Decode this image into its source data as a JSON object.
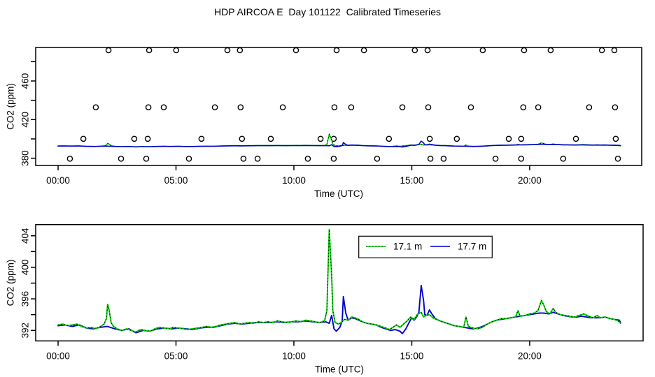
{
  "figure_title": "HDP AIRCOA E  Day 101122  Calibrated Timeseries",
  "colors": {
    "series_green": "#00D400",
    "series_blue": "#0000CD",
    "axis_black": "#000000",
    "background": "#ffffff"
  },
  "chart_data": [
    {
      "type": "line",
      "panel": "top",
      "title": "",
      "xlabel": "Time (UTC)",
      "ylabel": "CO2 (ppm)",
      "xlim_hours": [
        -0.95,
        24.75
      ],
      "ylim_ppm": [
        372.5,
        494.7
      ],
      "grid": false,
      "xticks": [
        {
          "t": 0,
          "label": "00:00"
        },
        {
          "t": 5,
          "label": "05:00"
        },
        {
          "t": 10,
          "label": "10:00"
        },
        {
          "t": 15,
          "label": "15:00"
        },
        {
          "t": 20,
          "label": "20:00"
        }
      ],
      "yticks": [
        {
          "v": 380,
          "label": "380"
        },
        {
          "v": 400,
          "label": ""
        },
        {
          "v": 420,
          "label": "420"
        },
        {
          "v": 440,
          "label": ""
        },
        {
          "v": 460,
          "label": "460"
        },
        {
          "v": 480,
          "label": ""
        }
      ],
      "series_draw_order": [
        "17.1 m",
        "17.7 m"
      ],
      "calibration_circles": {
        "marker": "open-circle",
        "levels_ppm": [
          491.8,
          432.7,
          400.1,
          379.5
        ],
        "times_hours": [
          [
            2.14,
            3.86,
            5.01,
            7.18,
            7.71,
            10.09,
            11.81,
            12.97,
            15.13,
            15.67,
            18.01,
            19.76,
            20.89,
            23.06,
            23.59
          ],
          [
            1.6,
            3.83,
            4.48,
            6.65,
            7.74,
            9.53,
            11.72,
            12.43,
            14.6,
            15.7,
            17.51,
            19.73,
            20.36,
            22.52,
            23.62
          ],
          [
            1.07,
            3.23,
            3.8,
            6.08,
            7.8,
            9.02,
            11.13,
            11.69,
            14.03,
            15.76,
            16.91,
            19.11,
            19.64,
            21.96,
            23.65
          ],
          [
            0.5,
            2.67,
            3.74,
            5.55,
            7.86,
            8.46,
            10.59,
            11.69,
            13.53,
            15.79,
            16.35,
            18.55,
            19.64,
            21.42,
            23.74
          ]
        ]
      }
    },
    {
      "type": "line",
      "panel": "bottom",
      "title": "",
      "xlabel": "Time (UTC)",
      "ylabel": "CO2 (ppm)",
      "xlim_hours": [
        -0.95,
        24.81
      ],
      "ylim_ppm": [
        390.67,
        405.42
      ],
      "grid": false,
      "xticks": [
        {
          "t": 0,
          "label": "00:00"
        },
        {
          "t": 5,
          "label": "05:00"
        },
        {
          "t": 10,
          "label": "10:00"
        },
        {
          "t": 15,
          "label": "15:00"
        },
        {
          "t": 20,
          "label": "20:00"
        }
      ],
      "yticks": [
        {
          "v": 392,
          "label": "392"
        },
        {
          "v": 394,
          "label": ""
        },
        {
          "v": 396,
          "label": "396"
        },
        {
          "v": 398,
          "label": ""
        },
        {
          "v": 400,
          "label": "400"
        },
        {
          "v": 402,
          "label": ""
        },
        {
          "v": 404,
          "label": "404"
        }
      ],
      "series_draw_order": [
        "17.7 m",
        "17.1 m"
      ],
      "legend": {
        "position": "top-center",
        "items": [
          {
            "label": "17.1 m",
            "style": "dotted",
            "color": "#00D400"
          },
          {
            "label": "17.7 m",
            "style": "solid",
            "color": "#0000CD"
          }
        ]
      }
    }
  ],
  "series": [
    {
      "name": "17.1 m",
      "color": "#00D400",
      "line_style": "green-with-black-dots",
      "points_t_ppm": [
        [
          0.0,
          392.7
        ],
        [
          0.2,
          392.8
        ],
        [
          0.4,
          392.6
        ],
        [
          0.6,
          392.7
        ],
        [
          0.8,
          392.8
        ],
        [
          1.0,
          392.5
        ],
        [
          1.2,
          392.3
        ],
        [
          1.4,
          392.4
        ],
        [
          1.6,
          392.2
        ],
        [
          1.8,
          392.5
        ],
        [
          1.95,
          392.8
        ],
        [
          2.05,
          393.5
        ],
        [
          2.1,
          395.3
        ],
        [
          2.15,
          394.8
        ],
        [
          2.25,
          393.0
        ],
        [
          2.35,
          392.5
        ],
        [
          2.5,
          392.2
        ],
        [
          2.7,
          392.0
        ],
        [
          2.9,
          392.2
        ],
        [
          3.1,
          392.0
        ],
        [
          3.3,
          391.8
        ],
        [
          3.5,
          392.1
        ],
        [
          3.7,
          392.0
        ],
        [
          3.9,
          391.9
        ],
        [
          4.1,
          392.2
        ],
        [
          4.3,
          392.4
        ],
        [
          4.5,
          392.3
        ],
        [
          4.7,
          392.2
        ],
        [
          4.9,
          392.4
        ],
        [
          5.1,
          392.3
        ],
        [
          5.3,
          392.2
        ],
        [
          5.5,
          392.1
        ],
        [
          5.7,
          392.2
        ],
        [
          5.9,
          392.3
        ],
        [
          6.1,
          392.4
        ],
        [
          6.3,
          392.5
        ],
        [
          6.5,
          392.4
        ],
        [
          6.7,
          392.5
        ],
        [
          6.9,
          392.7
        ],
        [
          7.1,
          392.8
        ],
        [
          7.3,
          392.9
        ],
        [
          7.5,
          393.0
        ],
        [
          7.7,
          392.8
        ],
        [
          7.9,
          392.9
        ],
        [
          8.1,
          393.0
        ],
        [
          8.3,
          392.9
        ],
        [
          8.5,
          393.1
        ],
        [
          8.7,
          393.0
        ],
        [
          8.9,
          393.1
        ],
        [
          9.1,
          393.0
        ],
        [
          9.3,
          393.2
        ],
        [
          9.5,
          393.1
        ],
        [
          9.7,
          393.0
        ],
        [
          9.9,
          393.1
        ],
        [
          10.1,
          393.2
        ],
        [
          10.3,
          393.1
        ],
        [
          10.5,
          393.3
        ],
        [
          10.7,
          393.2
        ],
        [
          10.9,
          393.1
        ],
        [
          11.1,
          393.0
        ],
        [
          11.3,
          393.2
        ],
        [
          11.4,
          394.5
        ],
        [
          11.5,
          404.8
        ],
        [
          11.6,
          399.0
        ],
        [
          11.65,
          394.5
        ],
        [
          11.75,
          393.0
        ],
        [
          11.9,
          392.8
        ],
        [
          12.0,
          393.0
        ],
        [
          12.15,
          393.4
        ],
        [
          12.3,
          393.3
        ],
        [
          12.45,
          393.7
        ],
        [
          12.6,
          393.6
        ],
        [
          12.75,
          393.4
        ],
        [
          12.9,
          393.1
        ],
        [
          13.1,
          392.9
        ],
        [
          13.3,
          392.8
        ],
        [
          13.5,
          392.7
        ],
        [
          13.7,
          392.5
        ],
        [
          13.9,
          392.3
        ],
        [
          14.05,
          392.1
        ],
        [
          14.2,
          392.4
        ],
        [
          14.35,
          392.7
        ],
        [
          14.5,
          392.4
        ],
        [
          14.65,
          392.8
        ],
        [
          14.8,
          393.2
        ],
        [
          14.95,
          393.7
        ],
        [
          15.1,
          393.4
        ],
        [
          15.25,
          394.1
        ],
        [
          15.4,
          394.3
        ],
        [
          15.5,
          393.7
        ],
        [
          15.6,
          393.9
        ],
        [
          15.75,
          394.0
        ],
        [
          15.9,
          393.6
        ],
        [
          16.05,
          393.4
        ],
        [
          16.2,
          393.2
        ],
        [
          16.4,
          393.0
        ],
        [
          16.6,
          392.8
        ],
        [
          16.8,
          392.6
        ],
        [
          17.0,
          392.5
        ],
        [
          17.2,
          392.4
        ],
        [
          17.3,
          393.7
        ],
        [
          17.4,
          392.5
        ],
        [
          17.6,
          392.3
        ],
        [
          17.8,
          392.2
        ],
        [
          18.0,
          392.4
        ],
        [
          18.2,
          392.8
        ],
        [
          18.4,
          393.1
        ],
        [
          18.6,
          393.3
        ],
        [
          18.8,
          393.5
        ],
        [
          19.0,
          393.5
        ],
        [
          19.2,
          393.6
        ],
        [
          19.4,
          393.7
        ],
        [
          19.5,
          394.5
        ],
        [
          19.6,
          393.8
        ],
        [
          19.8,
          393.9
        ],
        [
          20.0,
          394.1
        ],
        [
          20.2,
          394.2
        ],
        [
          20.35,
          394.5
        ],
        [
          20.5,
          395.8
        ],
        [
          20.6,
          395.2
        ],
        [
          20.7,
          394.4
        ],
        [
          20.85,
          394.1
        ],
        [
          21.0,
          394.8
        ],
        [
          21.1,
          394.3
        ],
        [
          21.3,
          394.0
        ],
        [
          21.5,
          393.9
        ],
        [
          21.7,
          393.8
        ],
        [
          21.9,
          393.7
        ],
        [
          22.1,
          393.9
        ],
        [
          22.3,
          394.1
        ],
        [
          22.5,
          393.8
        ],
        [
          22.7,
          393.6
        ],
        [
          22.85,
          393.9
        ],
        [
          23.0,
          393.6
        ],
        [
          23.2,
          393.7
        ],
        [
          23.4,
          393.5
        ],
        [
          23.6,
          393.4
        ],
        [
          23.75,
          393.2
        ],
        [
          23.85,
          392.9
        ]
      ]
    },
    {
      "name": "17.7 m",
      "color": "#0000CD",
      "line_style": "solid",
      "points_t_ppm": [
        [
          0.0,
          392.6
        ],
        [
          0.3,
          392.7
        ],
        [
          0.6,
          392.5
        ],
        [
          0.9,
          392.7
        ],
        [
          1.2,
          392.3
        ],
        [
          1.5,
          392.2
        ],
        [
          1.8,
          392.4
        ],
        [
          2.1,
          392.5
        ],
        [
          2.4,
          392.2
        ],
        [
          2.7,
          392.0
        ],
        [
          3.0,
          392.2
        ],
        [
          3.3,
          391.7
        ],
        [
          3.6,
          392.0
        ],
        [
          3.9,
          391.9
        ],
        [
          4.2,
          392.2
        ],
        [
          4.5,
          392.3
        ],
        [
          4.8,
          392.2
        ],
        [
          5.1,
          392.3
        ],
        [
          5.4,
          392.2
        ],
        [
          5.7,
          392.1
        ],
        [
          6.0,
          392.3
        ],
        [
          6.3,
          392.4
        ],
        [
          6.6,
          392.4
        ],
        [
          6.9,
          392.6
        ],
        [
          7.2,
          392.8
        ],
        [
          7.5,
          392.9
        ],
        [
          7.8,
          392.8
        ],
        [
          8.1,
          392.9
        ],
        [
          8.4,
          393.0
        ],
        [
          8.7,
          393.0
        ],
        [
          9.0,
          393.0
        ],
        [
          9.3,
          393.1
        ],
        [
          9.6,
          393.0
        ],
        [
          9.9,
          393.1
        ],
        [
          10.2,
          393.1
        ],
        [
          10.5,
          393.2
        ],
        [
          10.8,
          393.1
        ],
        [
          11.1,
          393.0
        ],
        [
          11.35,
          393.1
        ],
        [
          11.5,
          392.9
        ],
        [
          11.6,
          393.9
        ],
        [
          11.7,
          392.2
        ],
        [
          11.8,
          391.9
        ],
        [
          11.95,
          392.4
        ],
        [
          12.05,
          393.2
        ],
        [
          12.1,
          396.3
        ],
        [
          12.2,
          394.2
        ],
        [
          12.3,
          393.3
        ],
        [
          12.45,
          393.6
        ],
        [
          12.6,
          393.5
        ],
        [
          12.75,
          393.3
        ],
        [
          12.9,
          393.1
        ],
        [
          13.1,
          392.9
        ],
        [
          13.3,
          392.8
        ],
        [
          13.5,
          392.7
        ],
        [
          13.7,
          392.4
        ],
        [
          13.9,
          392.2
        ],
        [
          14.1,
          392.0
        ],
        [
          14.3,
          392.1
        ],
        [
          14.5,
          391.9
        ],
        [
          14.6,
          391.6
        ],
        [
          14.75,
          392.2
        ],
        [
          14.9,
          393.1
        ],
        [
          15.0,
          393.6
        ],
        [
          15.1,
          393.3
        ],
        [
          15.2,
          393.7
        ],
        [
          15.3,
          394.3
        ],
        [
          15.4,
          397.7
        ],
        [
          15.5,
          395.8
        ],
        [
          15.55,
          394.0
        ],
        [
          15.65,
          393.9
        ],
        [
          15.75,
          394.6
        ],
        [
          15.85,
          394.1
        ],
        [
          16.0,
          393.5
        ],
        [
          16.2,
          393.2
        ],
        [
          16.4,
          393.0
        ],
        [
          16.6,
          392.8
        ],
        [
          16.8,
          392.6
        ],
        [
          17.0,
          392.5
        ],
        [
          17.2,
          392.4
        ],
        [
          17.4,
          392.3
        ],
        [
          17.6,
          392.2
        ],
        [
          17.8,
          392.3
        ],
        [
          18.0,
          392.5
        ],
        [
          18.2,
          392.8
        ],
        [
          18.4,
          393.1
        ],
        [
          18.6,
          393.3
        ],
        [
          18.8,
          393.4
        ],
        [
          19.0,
          393.5
        ],
        [
          19.2,
          393.6
        ],
        [
          19.4,
          393.7
        ],
        [
          19.6,
          393.8
        ],
        [
          19.8,
          393.9
        ],
        [
          20.0,
          394.0
        ],
        [
          20.2,
          394.1
        ],
        [
          20.4,
          394.2
        ],
        [
          20.6,
          394.2
        ],
        [
          20.8,
          394.1
        ],
        [
          21.0,
          394.3
        ],
        [
          21.2,
          394.1
        ],
        [
          21.4,
          393.9
        ],
        [
          21.6,
          393.8
        ],
        [
          21.8,
          393.7
        ],
        [
          22.0,
          393.7
        ],
        [
          22.2,
          393.8
        ],
        [
          22.4,
          393.7
        ],
        [
          22.6,
          393.6
        ],
        [
          22.8,
          393.6
        ],
        [
          23.0,
          393.6
        ],
        [
          23.2,
          393.7
        ],
        [
          23.4,
          393.5
        ],
        [
          23.6,
          393.4
        ],
        [
          23.8,
          393.3
        ],
        [
          23.85,
          393.0
        ]
      ]
    }
  ]
}
